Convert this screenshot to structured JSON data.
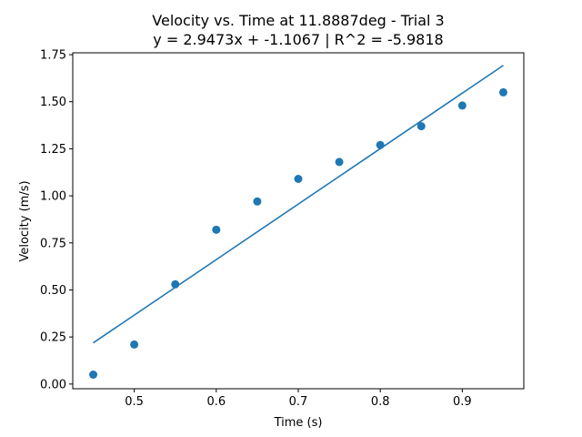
{
  "chart_data": {
    "type": "scatter",
    "title": "Velocity vs. Time at 11.8887deg - Trial 3",
    "subtitle": "y = 2.9473x + -1.1067 | R^2 = -5.9818",
    "xlabel": "Time (s)",
    "ylabel": "Velocity (m/s)",
    "xlim": [
      0.425,
      0.975
    ],
    "ylim": [
      -0.025,
      1.76
    ],
    "x_ticks": [
      0.5,
      0.6,
      0.7,
      0.8,
      0.9
    ],
    "x_tick_labels": [
      "0.5",
      "0.6",
      "0.7",
      "0.8",
      "0.9"
    ],
    "y_ticks": [
      0.0,
      0.25,
      0.5,
      0.75,
      1.0,
      1.25,
      1.5,
      1.75
    ],
    "y_tick_labels": [
      "0.00",
      "0.25",
      "0.50",
      "0.75",
      "1.00",
      "1.25",
      "1.50",
      "1.75"
    ],
    "grid": false,
    "color": "#1f77b4",
    "points": {
      "x": [
        0.45,
        0.5,
        0.55,
        0.6,
        0.65,
        0.7,
        0.75,
        0.8,
        0.85,
        0.9,
        0.95
      ],
      "y": [
        0.05,
        0.21,
        0.53,
        0.82,
        0.97,
        1.09,
        1.18,
        1.27,
        1.37,
        1.48,
        1.55
      ]
    },
    "fit_line": {
      "x": [
        0.45,
        0.95
      ],
      "y": [
        0.219,
        1.693
      ]
    }
  }
}
